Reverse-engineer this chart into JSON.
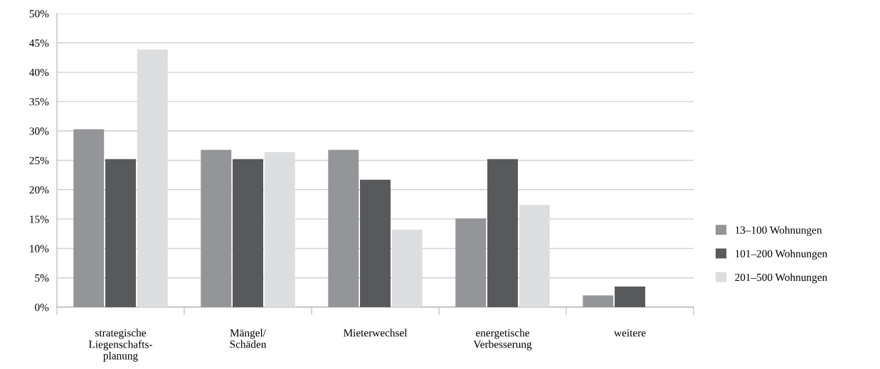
{
  "chart_data": {
    "type": "bar",
    "categories": [
      "strategische\nLiegenschafts-\nplanung",
      "Mängel/\nSchäden",
      "Mieterwechsel",
      "energetische\nVerbesserung",
      "weitere"
    ],
    "series": [
      {
        "name": "13–100 Wohnungen",
        "color": "#939598",
        "values": [
          30.3,
          26.8,
          26.8,
          15.1,
          2.0
        ]
      },
      {
        "name": "101–200 Wohnungen",
        "color": "#58595b",
        "values": [
          25.2,
          25.2,
          21.7,
          25.2,
          3.5
        ]
      },
      {
        "name": "201–500 Wohnungen",
        "color": "#dcdddf",
        "values": [
          43.9,
          26.4,
          13.2,
          17.4,
          null
        ]
      }
    ],
    "ylim": [
      0,
      50
    ],
    "yticks": [
      {
        "value": 0,
        "label": "0%"
      },
      {
        "value": 5,
        "label": "5%"
      },
      {
        "value": 10,
        "label": "10%"
      },
      {
        "value": 15,
        "label": "15%"
      },
      {
        "value": 20,
        "label": "20%"
      },
      {
        "value": 25,
        "label": "25%"
      },
      {
        "value": 30,
        "label": "30%"
      },
      {
        "value": 35,
        "label": "35%"
      },
      {
        "value": 40,
        "label": "40%"
      },
      {
        "value": 45,
        "label": "45%"
      },
      {
        "value": 50,
        "label": "50%"
      }
    ],
    "grid": "y",
    "legend": "right"
  }
}
